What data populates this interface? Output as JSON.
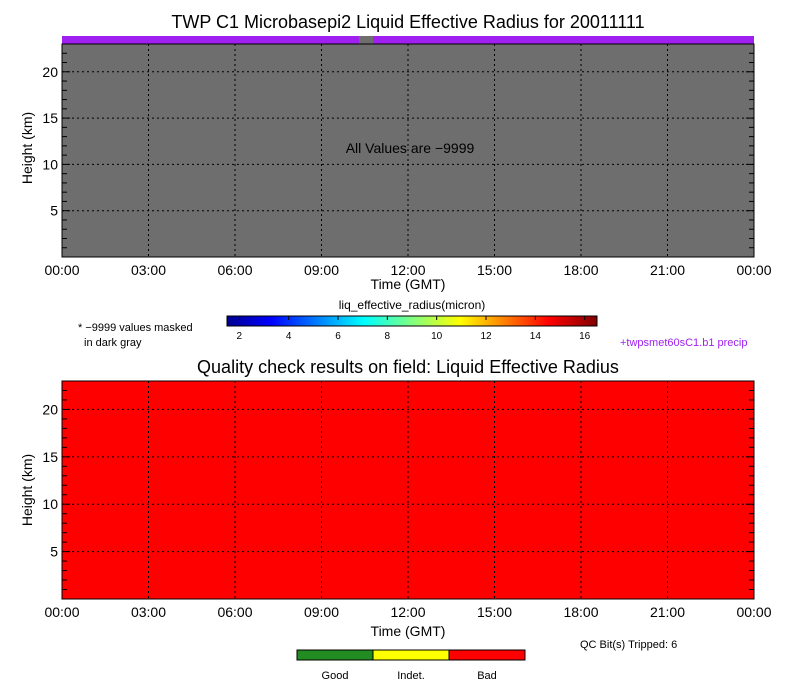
{
  "chart_data": [
    {
      "type": "heatmap",
      "title": "TWP C1 Microbasepi2 Liquid Effective Radius for 20011111",
      "xlabel": "Time (GMT)",
      "ylabel": "Height (km)",
      "xticks": [
        "00:00",
        "03:00",
        "06:00",
        "09:00",
        "12:00",
        "15:00",
        "18:00",
        "21:00",
        "00:00"
      ],
      "xlim_hours": [
        0,
        24
      ],
      "yticks": [
        5,
        10,
        15,
        20
      ],
      "ylim": [
        0,
        23
      ],
      "grid": true,
      "annotation": "All Values are −9999",
      "fill_color": "#6e6e6e",
      "precip_bar": {
        "color": "#a020f0",
        "gap_hours": [
          10.3,
          10.8
        ],
        "gap_color": "#6e6e6e"
      },
      "colorbar": {
        "label": "liq_effective_radius(micron)",
        "ticks": [
          2,
          4,
          6,
          8,
          10,
          12,
          14,
          16
        ],
        "range": [
          1.5,
          16.5
        ]
      },
      "mask_note": [
        "* −9999 values masked",
        "in dark gray"
      ],
      "precip_label": "+twpsmet60sC1.b1 precip"
    },
    {
      "type": "heatmap",
      "title": "Quality check results on field: Liquid Effective Radius",
      "xlabel": "Time (GMT)",
      "ylabel": "Height (km)",
      "xticks": [
        "00:00",
        "03:00",
        "06:00",
        "09:00",
        "12:00",
        "15:00",
        "18:00",
        "21:00",
        "00:00"
      ],
      "xlim_hours": [
        0,
        24
      ],
      "yticks": [
        5,
        10,
        15,
        20
      ],
      "ylim": [
        0,
        23
      ],
      "grid": true,
      "fill_color": "#ff0000",
      "qc_text": "QC Bit(s) Tripped: 6",
      "legend": [
        {
          "label": "Good",
          "color": "#228b22"
        },
        {
          "label": "Indet.",
          "color": "#ffff00"
        },
        {
          "label": "Bad",
          "color": "#ff0000"
        }
      ]
    }
  ]
}
